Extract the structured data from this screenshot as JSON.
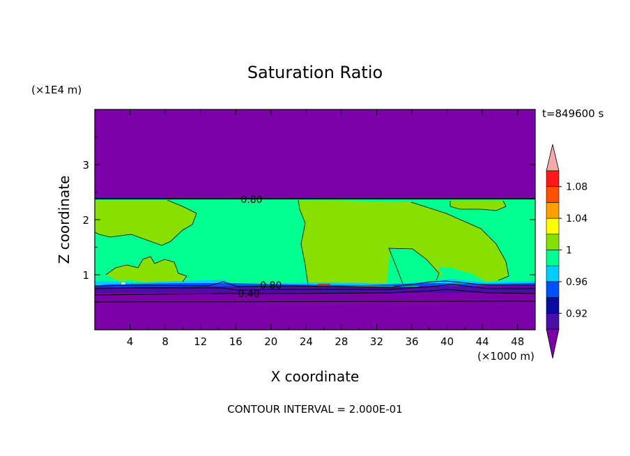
{
  "chart_data": {
    "type": "heatmap",
    "subtype": "filled-contour",
    "title": "Saturation Ratio",
    "time_label": "t=849600 s",
    "xlabel": "X coordinate",
    "ylabel": "Z coordinate",
    "x_unit": "(×1000 m)",
    "y_unit": "(×1E4 m)",
    "xlim": [
      0,
      50
    ],
    "ylim": [
      0,
      4
    ],
    "x_ticks": [
      4,
      8,
      12,
      16,
      20,
      24,
      28,
      32,
      36,
      40,
      44,
      48
    ],
    "y_ticks": [
      1,
      2,
      3
    ],
    "footer": "CONTOUR INTERVAL = 2.000E-01",
    "colorbar": {
      "bins": [
        {
          "lo": null,
          "hi": 0.9,
          "color": "#7b00a8"
        },
        {
          "lo": 0.9,
          "hi": 0.92,
          "color": "#4b0fa8"
        },
        {
          "lo": 0.92,
          "hi": 0.94,
          "color": "#0a0aa0"
        },
        {
          "lo": 0.94,
          "hi": 0.96,
          "color": "#0050ff"
        },
        {
          "lo": 0.96,
          "hi": 0.98,
          "color": "#00cdff"
        },
        {
          "lo": 0.98,
          "hi": 1.0,
          "color": "#00ff90"
        },
        {
          "lo": 1.0,
          "hi": 1.02,
          "color": "#88e000"
        },
        {
          "lo": 1.02,
          "hi": 1.04,
          "color": "#ffff00"
        },
        {
          "lo": 1.04,
          "hi": 1.06,
          "color": "#ffa000"
        },
        {
          "lo": 1.06,
          "hi": 1.08,
          "color": "#ff5000"
        },
        {
          "lo": 1.08,
          "hi": 1.1,
          "color": "#ff1818"
        },
        {
          "lo": 1.1,
          "hi": null,
          "color": "#f8a8a8"
        }
      ],
      "tick_labels": [
        "1.08",
        "1.04",
        "1",
        "0.96",
        "0.92"
      ],
      "tick_values": [
        1.08,
        1.04,
        1.0,
        0.96,
        0.92
      ]
    },
    "contour_labels": [
      {
        "text": "0.80",
        "x": 17.8,
        "y": 2.37
      },
      {
        "text": "0.80",
        "x": 20.0,
        "y": 0.81
      },
      {
        "text": "0.40",
        "x": 17.5,
        "y": 0.66
      }
    ],
    "grid": false
  }
}
